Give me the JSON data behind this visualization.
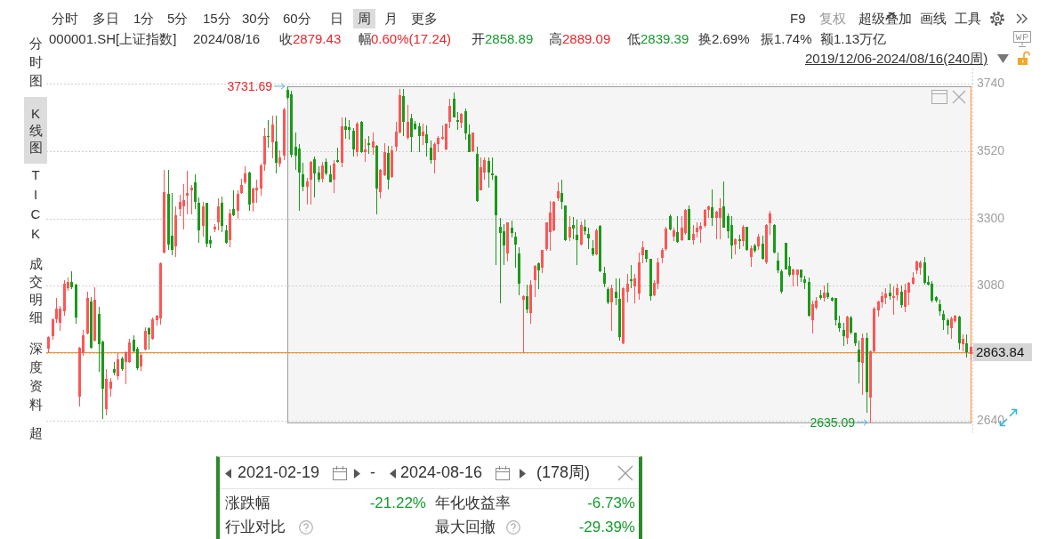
{
  "chart_data": {
    "type": "candlestick",
    "title": "000001.SH[上证指数]",
    "categories": [
      null,
      null,
      null,
      null,
      null,
      null,
      null,
      null,
      null,
      null,
      null,
      null,
      null,
      null,
      null,
      null,
      null,
      null,
      null,
      null,
      null,
      null,
      null,
      null,
      null,
      null,
      null,
      null,
      null,
      null,
      null,
      null,
      null,
      null,
      null,
      null,
      null,
      null,
      null,
      null,
      null,
      null,
      null,
      null,
      null,
      null,
      null,
      null,
      null,
      null,
      null,
      null,
      null,
      null,
      null,
      null,
      null,
      null,
      null,
      null,
      null,
      null,
      null,
      null,
      null,
      null,
      null,
      null,
      null,
      null,
      null,
      null,
      null,
      null,
      null,
      null,
      null,
      null,
      null,
      null,
      null,
      null,
      null,
      null,
      null,
      null,
      null,
      null,
      null,
      null,
      null,
      null,
      null,
      null,
      null,
      null,
      null,
      null,
      null,
      null,
      null,
      null,
      null,
      null,
      null,
      null,
      null,
      null,
      null,
      null,
      null,
      null,
      null,
      null,
      null,
      null,
      null,
      null,
      null,
      null,
      null,
      null,
      null,
      null,
      null,
      null,
      null,
      null,
      null,
      null,
      null,
      null,
      null,
      null,
      null,
      null,
      null,
      null,
      null,
      null,
      null,
      null,
      null,
      null,
      null,
      null,
      null,
      null,
      null,
      null,
      null,
      null,
      null,
      null,
      null,
      null,
      null,
      null,
      null,
      null,
      null,
      null,
      null,
      null,
      null,
      null,
      null,
      null,
      null,
      null,
      null,
      null,
      null,
      null,
      null,
      null,
      null,
      null,
      null,
      null,
      null,
      null,
      null,
      null,
      null,
      null,
      null,
      null,
      null,
      null,
      null,
      null,
      null,
      null,
      null,
      null,
      null,
      null,
      null,
      null,
      null,
      null,
      null,
      null,
      null,
      null,
      null,
      null,
      null,
      null,
      null,
      null,
      null,
      null,
      null,
      null,
      null,
      null,
      null,
      null,
      null,
      null,
      null,
      null,
      null,
      null,
      null,
      null,
      null,
      null,
      null,
      null,
      null,
      null,
      null,
      null,
      null,
      null,
      null,
      null
    ],
    "ohlc": [
      [
        2877,
        2915,
        2863,
        2913
      ],
      [
        2917,
        2974,
        2906,
        2970
      ],
      [
        2974,
        3041,
        2962,
        3005
      ],
      [
        2962,
        3014,
        2936,
        3005
      ],
      [
        3000,
        3099,
        2986,
        3087
      ],
      [
        3074,
        3108,
        3066,
        3092
      ],
      [
        3092,
        3129,
        3071,
        3077
      ],
      [
        3083,
        3087,
        2958,
        2979
      ],
      [
        2720,
        2882,
        2689,
        2879
      ],
      [
        2863,
        2936,
        2854,
        2919
      ],
      [
        2926,
        3061,
        2925,
        3041
      ],
      [
        3030,
        3042,
        2879,
        2882
      ],
      [
        2904,
        3076,
        2901,
        3036
      ],
      [
        2989,
        3011,
        2802,
        2892
      ],
      [
        2899,
        2901,
        2647,
        2748
      ],
      [
        2681,
        2809,
        2661,
        2776
      ],
      [
        2746,
        2779,
        2720,
        2767
      ],
      [
        2808,
        2832,
        2791,
        2799
      ],
      [
        2788,
        2859,
        2776,
        2840
      ],
      [
        2844,
        2848,
        2804,
        2812
      ],
      [
        2833,
        2865,
        2762,
        2863
      ],
      [
        2835,
        2908,
        2830,
        2896
      ],
      [
        2903,
        2917,
        2866,
        2868
      ],
      [
        2875,
        2882,
        2807,
        2813
      ],
      [
        2819,
        2863,
        2804,
        2854
      ],
      [
        2876,
        2945,
        2873,
        2932
      ],
      [
        2943,
        2945,
        2875,
        2923
      ],
      [
        2911,
        2976,
        2908,
        2970
      ],
      [
        2970,
        2986,
        2953,
        2981
      ],
      [
        2977,
        3156,
        2955,
        3154
      ],
      [
        3191,
        3460,
        3189,
        3387
      ],
      [
        3380,
        3460,
        3200,
        3217
      ],
      [
        3245,
        3382,
        3184,
        3200
      ],
      [
        3212,
        3339,
        3176,
        3311
      ],
      [
        3335,
        3377,
        3311,
        3354
      ],
      [
        3344,
        3412,
        3266,
        3360
      ],
      [
        3377,
        3457,
        3316,
        3384
      ],
      [
        3394,
        3410,
        3316,
        3402
      ],
      [
        3418,
        3445,
        3335,
        3358
      ],
      [
        3352,
        3370,
        3224,
        3264
      ],
      [
        3278,
        3354,
        3245,
        3339
      ],
      [
        3351,
        3352,
        3209,
        3220
      ],
      [
        3228,
        3245,
        3206,
        3220
      ],
      [
        3266,
        3283,
        3259,
        3273
      ],
      [
        3289,
        3366,
        3264,
        3339
      ],
      [
        3352,
        3372,
        3259,
        3280
      ],
      [
        3262,
        3280,
        3220,
        3224
      ],
      [
        3231,
        3330,
        3210,
        3316
      ],
      [
        3330,
        3391,
        3311,
        3314
      ],
      [
        3328,
        3391,
        3302,
        3379
      ],
      [
        3387,
        3429,
        3384,
        3410
      ],
      [
        3422,
        3471,
        3415,
        3448
      ],
      [
        3450,
        3453,
        3327,
        3349
      ],
      [
        3354,
        3401,
        3325,
        3398
      ],
      [
        3396,
        3426,
        3354,
        3401
      ],
      [
        3401,
        3479,
        3377,
        3473
      ],
      [
        3479,
        3594,
        3460,
        3570
      ],
      [
        3570,
        3622,
        3533,
        3568
      ],
      [
        3552,
        3636,
        3500,
        3608
      ],
      [
        3552,
        3636,
        3451,
        3486
      ],
      [
        3481,
        3523,
        3471,
        3500
      ],
      [
        3507,
        3662,
        3495,
        3655
      ],
      [
        3721,
        3731.69,
        3690,
        3697
      ],
      [
        3707,
        3717,
        3502,
        3511
      ],
      [
        3533,
        3580,
        3462,
        3507
      ],
      [
        3528,
        3542,
        3328,
        3454
      ],
      [
        3443,
        3481,
        3391,
        3407
      ],
      [
        3407,
        3434,
        3349,
        3420
      ],
      [
        3429,
        3488,
        3349,
        3486
      ],
      [
        3495,
        3502,
        3372,
        3451
      ],
      [
        3451,
        3471,
        3420,
        3429
      ],
      [
        3434,
        3486,
        3422,
        3473
      ],
      [
        3486,
        3498,
        3443,
        3451
      ],
      [
        3445,
        3473,
        3420,
        3421
      ],
      [
        3429,
        3490,
        3387,
        3479
      ],
      [
        3491,
        3531,
        3485,
        3488
      ],
      [
        3486,
        3629,
        3471,
        3602
      ],
      [
        3602,
        3629,
        3563,
        3592
      ],
      [
        3599,
        3622,
        3561,
        3592
      ],
      [
        3587,
        3594,
        3506,
        3528
      ],
      [
        3520,
        3615,
        3506,
        3611
      ],
      [
        3615,
        3618,
        3517,
        3519
      ],
      [
        3519,
        3561,
        3488,
        3525
      ],
      [
        3545,
        3570,
        3514,
        3542
      ],
      [
        3533,
        3580,
        3512,
        3553
      ],
      [
        3537,
        3539,
        3316,
        3401
      ],
      [
        3388,
        3462,
        3370,
        3460
      ],
      [
        3445,
        3545,
        3440,
        3516
      ],
      [
        3514,
        3537,
        3398,
        3429
      ],
      [
        3438,
        3537,
        3437,
        3523
      ],
      [
        3537,
        3615,
        3523,
        3583
      ],
      [
        3583,
        3724,
        3580,
        3702
      ],
      [
        3701,
        3724,
        3573,
        3618
      ],
      [
        3566,
        3671,
        3561,
        3615
      ],
      [
        3627,
        3643,
        3520,
        3570
      ],
      [
        3611,
        3618,
        3592,
        3596
      ],
      [
        3602,
        3613,
        3519,
        3573
      ],
      [
        3573,
        3611,
        3544,
        3583
      ],
      [
        3575,
        3603,
        3504,
        3549
      ],
      [
        3531,
        3554,
        3481,
        3495
      ],
      [
        3495,
        3549,
        3451,
        3542
      ],
      [
        3545,
        3570,
        3519,
        3563
      ],
      [
        3563,
        3605,
        3561,
        3566
      ],
      [
        3528,
        3611,
        3526,
        3610
      ],
      [
        3618,
        3690,
        3599,
        3668
      ],
      [
        3690,
        3712,
        3632,
        3634
      ],
      [
        3622,
        3648,
        3591,
        3620
      ],
      [
        3615,
        3646,
        3599,
        3643
      ],
      [
        3651,
        3658,
        3561,
        3582
      ],
      [
        3575,
        3608,
        3519,
        3520
      ],
      [
        3523,
        3582,
        3519,
        3581
      ],
      [
        3511,
        3533,
        3356,
        3360
      ],
      [
        3395,
        3500,
        3394,
        3467
      ],
      [
        3454,
        3500,
        3429,
        3490
      ],
      [
        3488,
        3500,
        3403,
        3454
      ],
      [
        3447,
        3500,
        3429,
        3444
      ],
      [
        3438,
        3440,
        3151,
        3314
      ],
      [
        3273,
        3301,
        3026,
        3255
      ],
      [
        3257,
        3283,
        3151,
        3214
      ],
      [
        3189,
        3288,
        3162,
        3286
      ],
      [
        3271,
        3292,
        3240,
        3255
      ],
      [
        3242,
        3255,
        3143,
        3218
      ],
      [
        3187,
        3207,
        3052,
        3090
      ],
      [
        3038,
        3050,
        2864,
        3047
      ],
      [
        3045,
        3085,
        2995,
        3005
      ],
      [
        2993,
        3099,
        2958,
        3085
      ],
      [
        3102,
        3148,
        3045,
        3146
      ],
      [
        3153,
        3156,
        3071,
        3132
      ],
      [
        3143,
        3198,
        3125,
        3196
      ],
      [
        3203,
        3288,
        3198,
        3286
      ],
      [
        3259,
        3358,
        3196,
        3319
      ],
      [
        3264,
        3358,
        3262,
        3354
      ],
      [
        3368,
        3418,
        3360,
        3388
      ],
      [
        3382,
        3426,
        3335,
        3358
      ],
      [
        3342,
        3342,
        3228,
        3231
      ],
      [
        3240,
        3309,
        3228,
        3272
      ],
      [
        3278,
        3306,
        3236,
        3269
      ],
      [
        3248,
        3297,
        3151,
        3231
      ],
      [
        3219,
        3290,
        3215,
        3278
      ],
      [
        3272,
        3297,
        3250,
        3262
      ],
      [
        3250,
        3269,
        3203,
        3238
      ],
      [
        3203,
        3228,
        3179,
        3187
      ],
      [
        3187,
        3266,
        3184,
        3262
      ],
      [
        3276,
        3278,
        3127,
        3130
      ],
      [
        3123,
        3143,
        3077,
        3090
      ],
      [
        3069,
        3076,
        3024,
        3028
      ],
      [
        3030,
        3085,
        2936,
        3073
      ],
      [
        3061,
        3104,
        3019,
        3043
      ],
      [
        3038,
        3104,
        2905,
        2915
      ],
      [
        2896,
        3076,
        2892,
        3071
      ],
      [
        3064,
        3118,
        3028,
        3087
      ],
      [
        3102,
        3148,
        3074,
        3099
      ],
      [
        3080,
        3118,
        3026,
        3104
      ],
      [
        3059,
        3189,
        3038,
        3156
      ],
      [
        3184,
        3226,
        3158,
        3207
      ],
      [
        3196,
        3198,
        3160,
        3170
      ],
      [
        3168,
        3168,
        3036,
        3049
      ],
      [
        3051,
        3099,
        3049,
        3090
      ],
      [
        3090,
        3172,
        3071,
        3158
      ],
      [
        3174,
        3203,
        3156,
        3196
      ],
      [
        3203,
        3272,
        3196,
        3266
      ],
      [
        3309,
        3313,
        3264,
        3266
      ],
      [
        3245,
        3271,
        3228,
        3262
      ],
      [
        3255,
        3309,
        3224,
        3226
      ],
      [
        3231,
        3309,
        3228,
        3271
      ],
      [
        3255,
        3332,
        3250,
        3328
      ],
      [
        3332,
        3344,
        3231,
        3233
      ],
      [
        3231,
        3280,
        3219,
        3250
      ],
      [
        3257,
        3288,
        3240,
        3269
      ],
      [
        3266,
        3288,
        3224,
        3276
      ],
      [
        3278,
        3330,
        3273,
        3328
      ],
      [
        3332,
        3344,
        3304,
        3339
      ],
      [
        3338,
        3396,
        3278,
        3306
      ],
      [
        3304,
        3325,
        3234,
        3323
      ],
      [
        3304,
        3366,
        3236,
        3335
      ],
      [
        3341,
        3420,
        3272,
        3273
      ],
      [
        3309,
        3316,
        3238,
        3262
      ],
      [
        3278,
        3309,
        3172,
        3215
      ],
      [
        3219,
        3234,
        3187,
        3231
      ],
      [
        3233,
        3247,
        3203,
        3230
      ],
      [
        3228,
        3278,
        3212,
        3273
      ],
      [
        3272,
        3273,
        3196,
        3200
      ],
      [
        3177,
        3212,
        3146,
        3203
      ],
      [
        3212,
        3219,
        3191,
        3196
      ],
      [
        3212,
        3250,
        3200,
        3240
      ],
      [
        3219,
        3245,
        3168,
        3170
      ],
      [
        3160,
        3281,
        3153,
        3278
      ],
      [
        3288,
        3325,
        3250,
        3316
      ],
      [
        3278,
        3281,
        3189,
        3191
      ],
      [
        3162,
        3189,
        3125,
        3132
      ],
      [
        3129,
        3132,
        3057,
        3064
      ],
      [
        3220,
        3220,
        3135,
        3137
      ],
      [
        3146,
        3174,
        3113,
        3118
      ],
      [
        3118,
        3137,
        3082,
        3132
      ],
      [
        3120,
        3134,
        3080,
        3132
      ],
      [
        3132,
        3134,
        3096,
        3110
      ],
      [
        3102,
        3113,
        3071,
        3092
      ],
      [
        3092,
        3108,
        2981,
        2984
      ],
      [
        2972,
        3033,
        2927,
        3019
      ],
      [
        3011,
        3043,
        3005,
        3033
      ],
      [
        3049,
        3068,
        3038,
        3043
      ],
      [
        3043,
        3080,
        3031,
        3057
      ],
      [
        3059,
        3090,
        3040,
        3045
      ],
      [
        3040,
        3043,
        3033,
        3035
      ],
      [
        3040,
        3040,
        2953,
        2972
      ],
      [
        2958,
        2983,
        2934,
        2945
      ],
      [
        2936,
        2958,
        2887,
        2917
      ],
      [
        2913,
        2981,
        2892,
        2978
      ],
      [
        2977,
        2981,
        2923,
        2929
      ],
      [
        2927,
        2927,
        2887,
        2896
      ],
      [
        2873,
        2901,
        2764,
        2835
      ],
      [
        2830,
        2925,
        2727,
        2911
      ],
      [
        2911,
        2927,
        2670,
        2734
      ],
      [
        2719,
        2868,
        2635.09,
        2866
      ],
      [
        2870,
        3010,
        2866,
        3005
      ],
      [
        3002,
        3033,
        2983,
        3030
      ],
      [
        3030,
        3061,
        3010,
        3047
      ],
      [
        3044,
        3071,
        3024,
        3055
      ],
      [
        3059,
        3088,
        3038,
        3049
      ],
      [
        3042,
        3077,
        2988,
        3045
      ],
      [
        3053,
        3087,
        3036,
        3071
      ],
      [
        3061,
        3080,
        3011,
        3019
      ],
      [
        3014,
        3087,
        2998,
        3066
      ],
      [
        3061,
        3092,
        3019,
        3091
      ],
      [
        3090,
        3125,
        3087,
        3108
      ],
      [
        3134,
        3162,
        3121,
        3160
      ],
      [
        3143,
        3162,
        3118,
        3158
      ],
      [
        3158,
        3174,
        3087,
        3092
      ],
      [
        3094,
        3113,
        3085,
        3088
      ],
      [
        3087,
        3096,
        3030,
        3036
      ],
      [
        3044,
        3047,
        3028,
        3036
      ],
      [
        3019,
        3036,
        2986,
        3000
      ],
      [
        2988,
        3000,
        2939,
        2970
      ],
      [
        2969,
        2974,
        2923,
        2953
      ],
      [
        2944,
        2979,
        2911,
        2974
      ],
      [
        2967,
        2986,
        2962,
        2983
      ],
      [
        2979,
        2981,
        2876,
        2895
      ],
      [
        2892,
        2920,
        2868,
        2908
      ],
      [
        2892,
        2920,
        2849,
        2866
      ],
      [
        2858.89,
        2889.09,
        2839.39,
        2879.43
      ]
    ],
    "colors": [
      "#ff5555",
      "#ff5555",
      "#ff5555",
      "#ff5555",
      "#ff5555",
      "#ff5555",
      "#1a9a1a",
      "#1a9a1a",
      "#ff5555",
      "#ff5555",
      "#ff5555",
      "#1a9a1a",
      "#ff5555",
      "#1a9a1a",
      "#1a9a1a",
      "#ff5555",
      "#ff5555",
      "#1a9a1a",
      "#ff5555",
      "#1a9a1a",
      "#ff5555",
      "#ff5555",
      "#1a9a1a",
      "#1a9a1a",
      "#ff5555",
      "#ff5555",
      "#1a9a1a",
      "#ff5555",
      "#ff5555",
      "#ff5555",
      "#ff5555",
      "#1a9a1a",
      "#1a9a1a",
      "#ff5555",
      "#ff5555",
      "#ff5555",
      "#ff5555",
      "#ff5555",
      "#1a9a1a",
      "#1a9a1a",
      "#ff5555",
      "#1a9a1a",
      "#1a9a1a",
      "#ff5555",
      "#ff5555",
      "#1a9a1a",
      "#1a9a1a",
      "#ff5555",
      "#1a9a1a",
      "#ff5555",
      "#ff5555",
      "#ff5555",
      "#1a9a1a",
      "#ff5555",
      "#ff5555",
      "#ff5555",
      "#ff5555",
      "#1a9a1a",
      "#ff5555",
      "#1a9a1a",
      "#ff5555",
      "#ff5555",
      "#1a9a1a",
      "#1a9a1a",
      "#1a9a1a",
      "#1a9a1a",
      "#1a9a1a",
      "#ff5555",
      "#ff5555",
      "#1a9a1a",
      "#1a9a1a",
      "#ff5555",
      "#1a9a1a",
      "#1a9a1a",
      "#ff5555",
      "#1a9a1a",
      "#ff5555",
      "#1a9a1a",
      "#1a9a1a",
      "#1a9a1a",
      "#ff5555",
      "#1a9a1a",
      "#ff5555",
      "#1a9a1a",
      "#ff5555",
      "#1a9a1a",
      "#ff5555",
      "#ff5555",
      "#1a9a1a",
      "#ff5555",
      "#ff5555",
      "#ff5555",
      "#1a9a1a",
      "#ff5555",
      "#1a9a1a",
      "#1a9a1a",
      "#1a9a1a",
      "#ff5555",
      "#1a9a1a",
      "#1a9a1a",
      "#ff5555",
      "#ff5555",
      "#ff5555",
      "#ff5555",
      "#ff5555",
      "#1a9a1a",
      "#1a9a1a",
      "#ff5555",
      "#1a9a1a",
      "#1a9a1a",
      "#ff5555",
      "#1a9a1a",
      "#ff5555",
      "#ff5555",
      "#1a9a1a",
      "#1a9a1a",
      "#1a9a1a",
      "#1a9a1a",
      "#1a9a1a",
      "#ff5555",
      "#1a9a1a",
      "#1a9a1a",
      "#1a9a1a",
      "#ff5555",
      "#1a9a1a",
      "#ff5555",
      "#ff5555",
      "#1a9a1a",
      "#ff5555",
      "#ff5555",
      "#ff5555",
      "#ff5555",
      "#ff5555",
      "#1a9a1a",
      "#1a9a1a",
      "#ff5555",
      "#1a9a1a",
      "#1a9a1a",
      "#ff5555",
      "#1a9a1a",
      "#1a9a1a",
      "#1a9a1a",
      "#ff5555",
      "#1a9a1a",
      "#1a9a1a",
      "#1a9a1a",
      "#ff5555",
      "#1a9a1a",
      "#1a9a1a",
      "#ff5555",
      "#ff5555",
      "#1a9a1a",
      "#ff5555",
      "#ff5555",
      "#ff5555",
      "#1a9a1a",
      "#1a9a1a",
      "#ff5555",
      "#ff5555",
      "#ff5555",
      "#ff5555",
      "#1a9a1a",
      "#ff5555",
      "#1a9a1a",
      "#ff5555",
      "#ff5555",
      "#1a9a1a",
      "#ff5555",
      "#ff5555",
      "#ff5555",
      "#ff5555",
      "#ff5555",
      "#1a9a1a",
      "#ff5555",
      "#ff5555",
      "#1a9a1a",
      "#1a9a1a",
      "#1a9a1a",
      "#ff5555",
      "#1a9a1a",
      "#ff5555",
      "#1a9a1a",
      "#ff5555",
      "#1a9a1a",
      "#ff5555",
      "#1a9a1a",
      "#ff5555",
      "#ff5555",
      "#1a9a1a",
      "#1a9a1a",
      "#1a9a1a",
      "#1a9a1a",
      "#1a9a1a",
      "#ff5555",
      "#ff5555",
      "#1a9a1a",
      "#1a9a1a",
      "#1a9a1a",
      "#ff5555",
      "#ff5555",
      "#1a9a1a",
      "#ff5555",
      "#1a9a1a",
      "#1a9a1a",
      "#1a9a1a",
      "#1a9a1a",
      "#1a9a1a",
      "#ff5555",
      "#1a9a1a",
      "#1a9a1a",
      "#1a9a1a",
      "#ff5555",
      "#1a9a1a",
      "#ff5555",
      "#ff5555",
      "#ff5555",
      "#ff5555",
      "#ff5555",
      "#1a9a1a",
      "#ff5555",
      "#ff5555",
      "#1a9a1a",
      "#ff5555",
      "#ff5555",
      "#ff5555",
      "#ff5555",
      "#ff5555",
      "#1a9a1a",
      "#1a9a1a",
      "#1a9a1a",
      "#1a9a1a",
      "#1a9a1a",
      "#1a9a1a",
      "#1a9a1a",
      "#ff5555",
      "#ff5555",
      "#1a9a1a",
      "#ff5555",
      "#1a9a1a",
      "#ff5555"
    ],
    "ylim": [
      2600,
      3790
    ],
    "yticks": [
      2640,
      {
        "value": 2860,
        "label": null
      },
      3080,
      3300,
      3520,
      3740
    ],
    "grid": "y",
    "tick_labels": "y",
    "ref_lines": [
      {
        "axis": "y",
        "value": 2863.84,
        "label": "2863.84",
        "color": "#ff8c1a"
      }
    ],
    "annotations": [
      "分时",
      "多日",
      "1分",
      "5分",
      "15分",
      "30分",
      "60分",
      "日",
      "周",
      "月",
      "更多",
      "F9",
      "复权",
      "超级叠加",
      "画线",
      "工具",
      "2024/08/16",
      "收",
      "2879.43",
      "幅",
      "0.60%(17.24)",
      "开",
      "2858.89",
      "高",
      "2889.09",
      "低",
      "2839.39",
      "换",
      "2.69%",
      "振",
      "1.74%",
      "额",
      "1.13万亿",
      "2019/12/06-2024/08/16(240周)",
      "分时图",
      "K线图",
      "TICK",
      "成交明细",
      "深度资料",
      "超",
      "3731.69",
      "2635.09",
      "2021-02-19",
      "-",
      "2024-08-16",
      "(178周)",
      "涨跌幅",
      "-21.22%",
      "年化收益率",
      "-6.73%",
      "行业对比",
      "最大回撤",
      "-29.39%"
    ]
  }
}
